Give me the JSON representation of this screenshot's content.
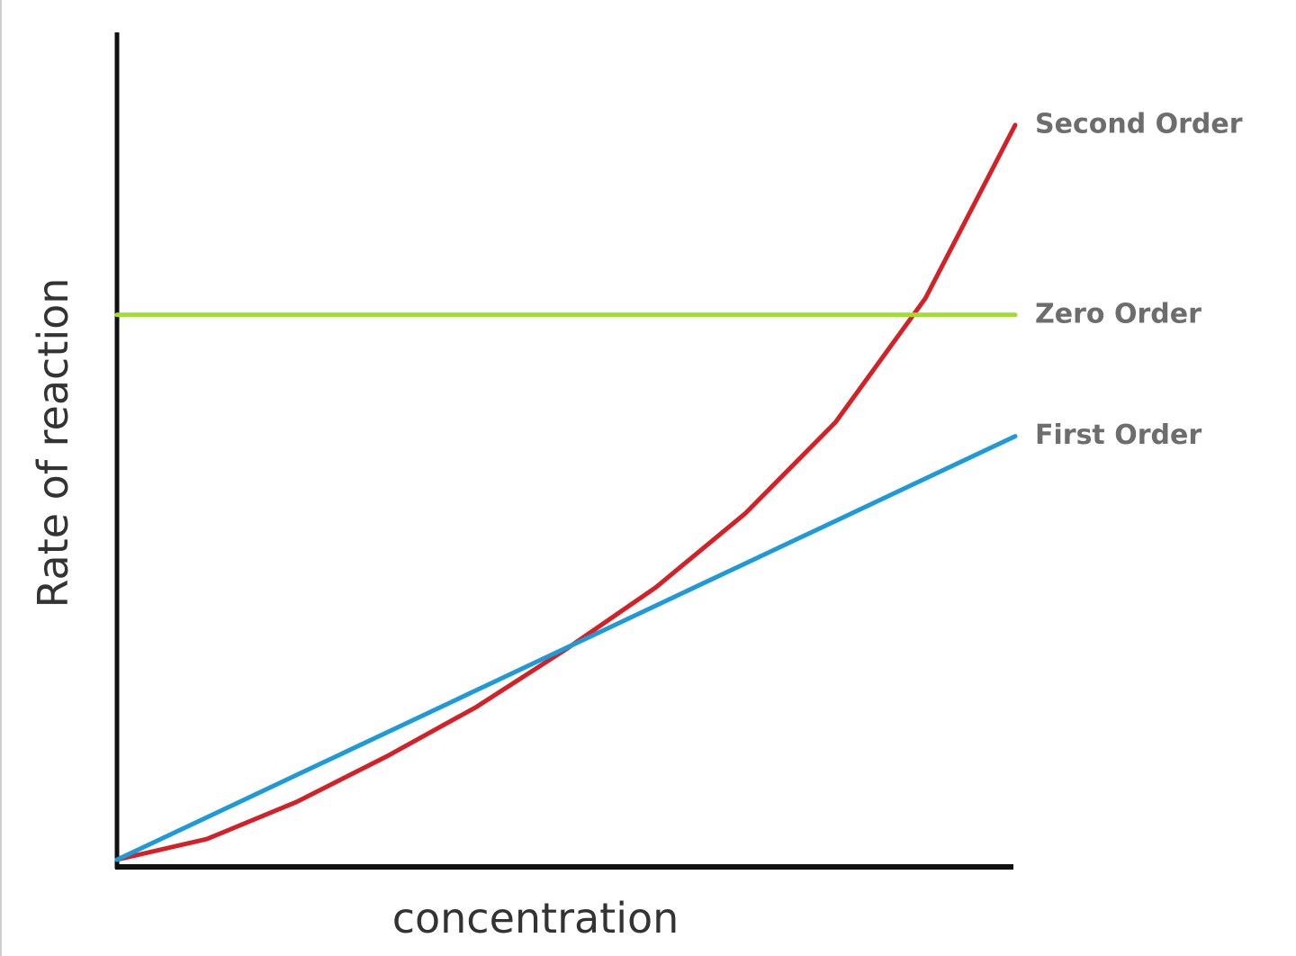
{
  "chart_data": {
    "type": "line",
    "x_label": "concentration",
    "y_label": "Rate of reaction",
    "x": [
      0,
      1,
      2,
      3,
      4,
      5,
      6,
      7,
      8,
      9,
      10
    ],
    "xlim": [
      0,
      10
    ],
    "ylim": [
      0,
      10
    ],
    "series": [
      {
        "name": "Second Order",
        "color": "#d42027",
        "values": [
          0,
          0.25,
          0.7,
          1.25,
          1.85,
          2.55,
          3.3,
          4.2,
          5.3,
          6.8,
          8.9
        ]
      },
      {
        "name": "Zero Order",
        "color": "#9fe025",
        "values": [
          6.6,
          6.6,
          6.6,
          6.6,
          6.6,
          6.6,
          6.6,
          6.6,
          6.6,
          6.6,
          6.6
        ]
      },
      {
        "name": "First Order",
        "color": "#1e9ad6",
        "values": [
          0,
          0.513,
          1.026,
          1.539,
          2.052,
          2.565,
          3.078,
          3.591,
          4.104,
          4.617,
          5.13
        ]
      }
    ]
  }
}
